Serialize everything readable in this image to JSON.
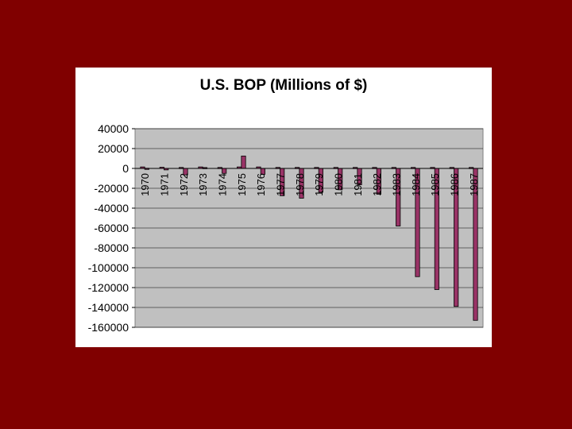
{
  "colors": {
    "background": "#800000",
    "panel": "#ffffff",
    "plot_area": "#c0c0c0",
    "bar_fill": "#993366",
    "bar_stroke": "#000000",
    "gridline": "#000000"
  },
  "chart_data": {
    "type": "bar",
    "title": "U.S. BOP (Millions of $)",
    "xlabel": "",
    "ylabel": "",
    "ylim": [
      -160000,
      40000
    ],
    "yticks": [
      40000,
      20000,
      0,
      -20000,
      -40000,
      -60000,
      -80000,
      -100000,
      -120000,
      -140000,
      -160000
    ],
    "grid": true,
    "legend": "none",
    "categories": [
      "1970",
      "1971",
      "1972",
      "1973",
      "1974",
      "1975",
      "1976",
      "1977",
      "1978",
      "1979",
      "1980",
      "1981",
      "1982",
      "1983",
      "1984",
      "1985",
      "1986",
      "1987"
    ],
    "series": [
      {
        "values": [
          1500,
          1200,
          1000,
          1500,
          1000,
          1500,
          1500,
          1000,
          1000,
          1000,
          1000,
          1000,
          1000,
          1000,
          1000,
          1000,
          1000,
          1000
        ]
      },
      {
        "values": [
          200,
          -1500,
          -6500,
          900,
          -5000,
          12500,
          -6000,
          -27500,
          -30000,
          -24000,
          -21500,
          -16500,
          -26000,
          -58000,
          -109000,
          -122000,
          -139000,
          -153000
        ]
      }
    ]
  }
}
